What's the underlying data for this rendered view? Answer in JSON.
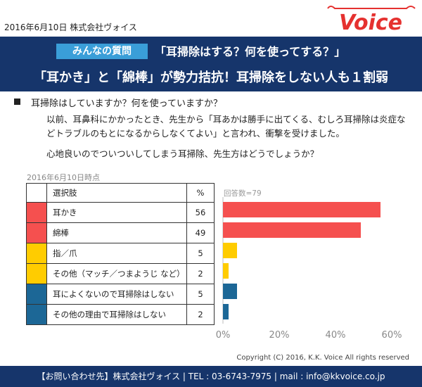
{
  "header": {
    "date_company": "2016年6月10日  株式会社ヴォイス",
    "logo_text": "Voice"
  },
  "banner": {
    "tag": "みんなの質問",
    "question": "「耳掃除はする？何を使ってする？」",
    "headline": "「耳かき」と「綿棒」が勢力拮抗！耳掃除をしない人も１割弱"
  },
  "question": {
    "title": "耳掃除はしていますか？何を使っていますか？",
    "body": "以前、耳鼻科にかかったとき、先生から「耳あかは勝手に出てくる、むしろ耳掃除は炎症などトラブルのもとになるからしなくてよい」と言われ、衝撃を受けました。",
    "follow": "心地良いのでついついしてしまう耳掃除、先生方はどうでしょうか？"
  },
  "as_of": "2016年6月10日時点",
  "chart_data": {
    "type": "bar",
    "orientation": "horizontal",
    "header": {
      "choice": "選択肢",
      "pct": "%"
    },
    "categories": [
      "耳かき",
      "綿棒",
      "指／爪",
      "その他（マッチ／つまようじ  など）",
      "耳によくないので耳掃除はしない",
      "その他の理由で耳掃除はしない"
    ],
    "values": [
      56,
      49,
      5,
      2,
      5,
      2
    ],
    "bar_colors": [
      "#f5504f",
      "#f5504f",
      "#ffcc00",
      "#ffcc00",
      "#1c6796",
      "#1c6796"
    ],
    "n_label": "回答数=79",
    "xlim": [
      0,
      60
    ],
    "xticks": [
      "0%",
      "20%",
      "40%",
      "60%"
    ]
  },
  "copyright": "Copyright  (C) 2016, K.K. Voice All rights reserved",
  "footer": "【お問い合わせ先】株式会社ヴォイス | TEL : 03-6743-7975 | mail : info@kkvoice.co.jp",
  "colors": {
    "navy": "#16356b",
    "tag_blue": "#3a9ed8",
    "logo_red": "#e5312f"
  }
}
